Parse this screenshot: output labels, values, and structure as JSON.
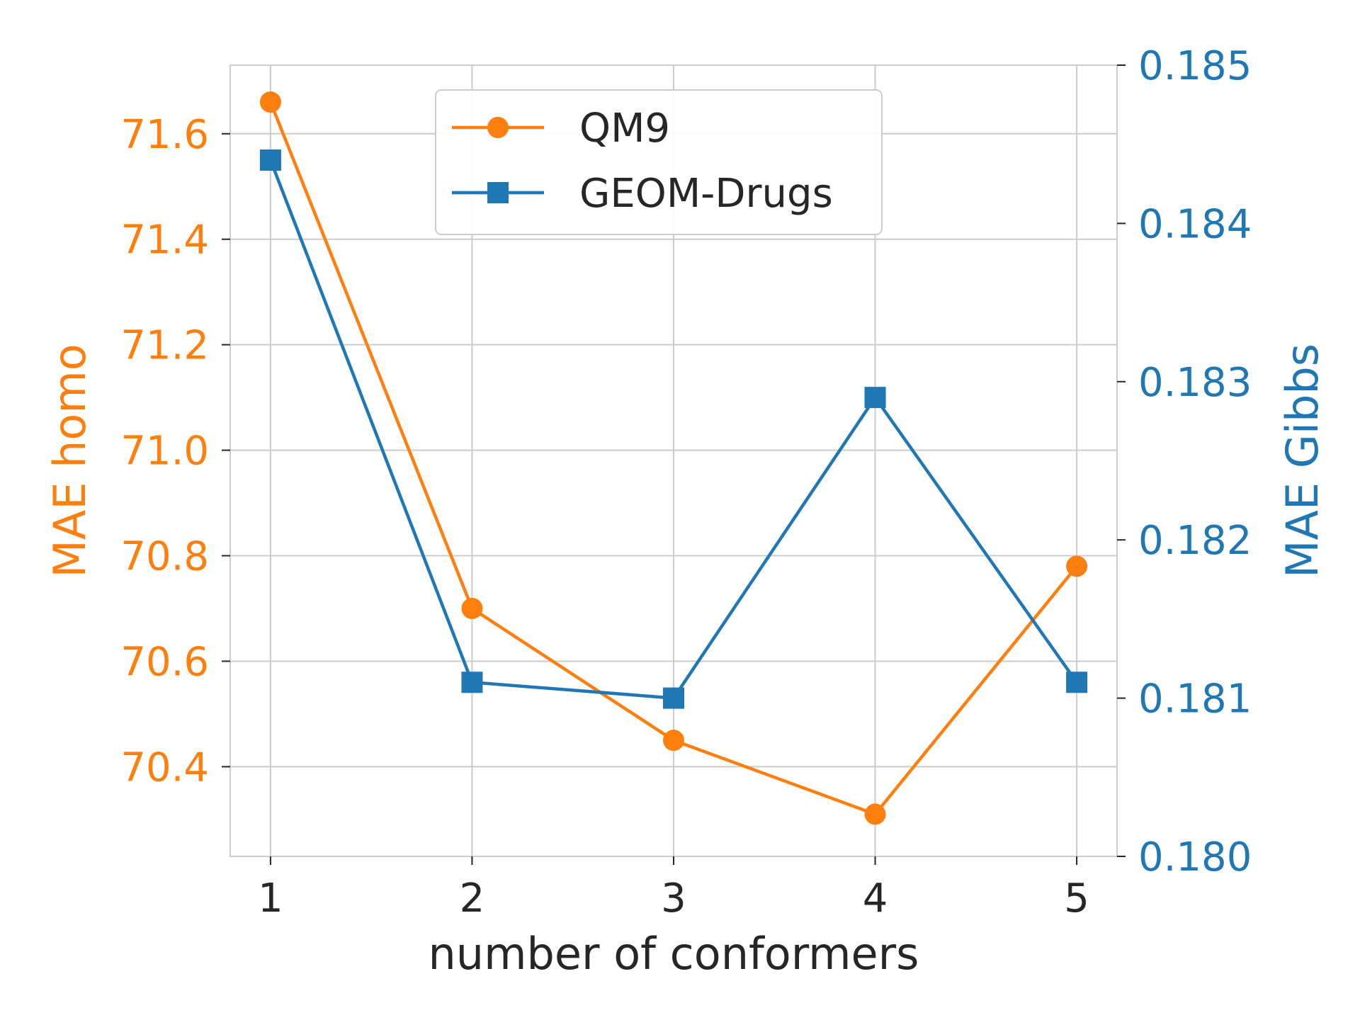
{
  "chart_data": {
    "type": "line",
    "xlabel": "number of conformers",
    "ylabel_left": "MAE homo",
    "ylabel_right": "MAE Gibbs",
    "x": [
      1,
      2,
      3,
      4,
      5
    ],
    "x_ticks": [
      "1",
      "2",
      "3",
      "4",
      "5"
    ],
    "xlim": [
      0.8,
      5.2
    ],
    "grid": true,
    "legend_position": "top-center",
    "series": [
      {
        "name": "QM9",
        "axis": "left",
        "marker": "circle",
        "color": "#ff7f0e",
        "values": [
          71.66,
          70.7,
          70.45,
          70.31,
          70.78
        ]
      },
      {
        "name": "GEOM-Drugs",
        "axis": "right",
        "marker": "square",
        "color": "#1f77b4",
        "values": [
          0.1844,
          0.1811,
          0.181,
          0.1829,
          0.1811
        ]
      }
    ],
    "left_axis": {
      "ylim": [
        70.23,
        71.73
      ],
      "ticks": [
        70.4,
        70.6,
        70.8,
        71.0,
        71.2,
        71.4,
        71.6
      ],
      "tick_labels": [
        "70.4",
        "70.6",
        "70.8",
        "71.0",
        "71.2",
        "71.4",
        "71.6"
      ],
      "color": "#ff7f0e"
    },
    "right_axis": {
      "ylim": [
        0.18,
        0.185
      ],
      "ticks": [
        0.18,
        0.181,
        0.182,
        0.183,
        0.184,
        0.185
      ],
      "tick_labels": [
        "0.180",
        "0.181",
        "0.182",
        "0.183",
        "0.184",
        "0.185"
      ],
      "color": "#1f77b4"
    },
    "axis_text_color": "#262626",
    "grid_color": "#cccccc"
  }
}
